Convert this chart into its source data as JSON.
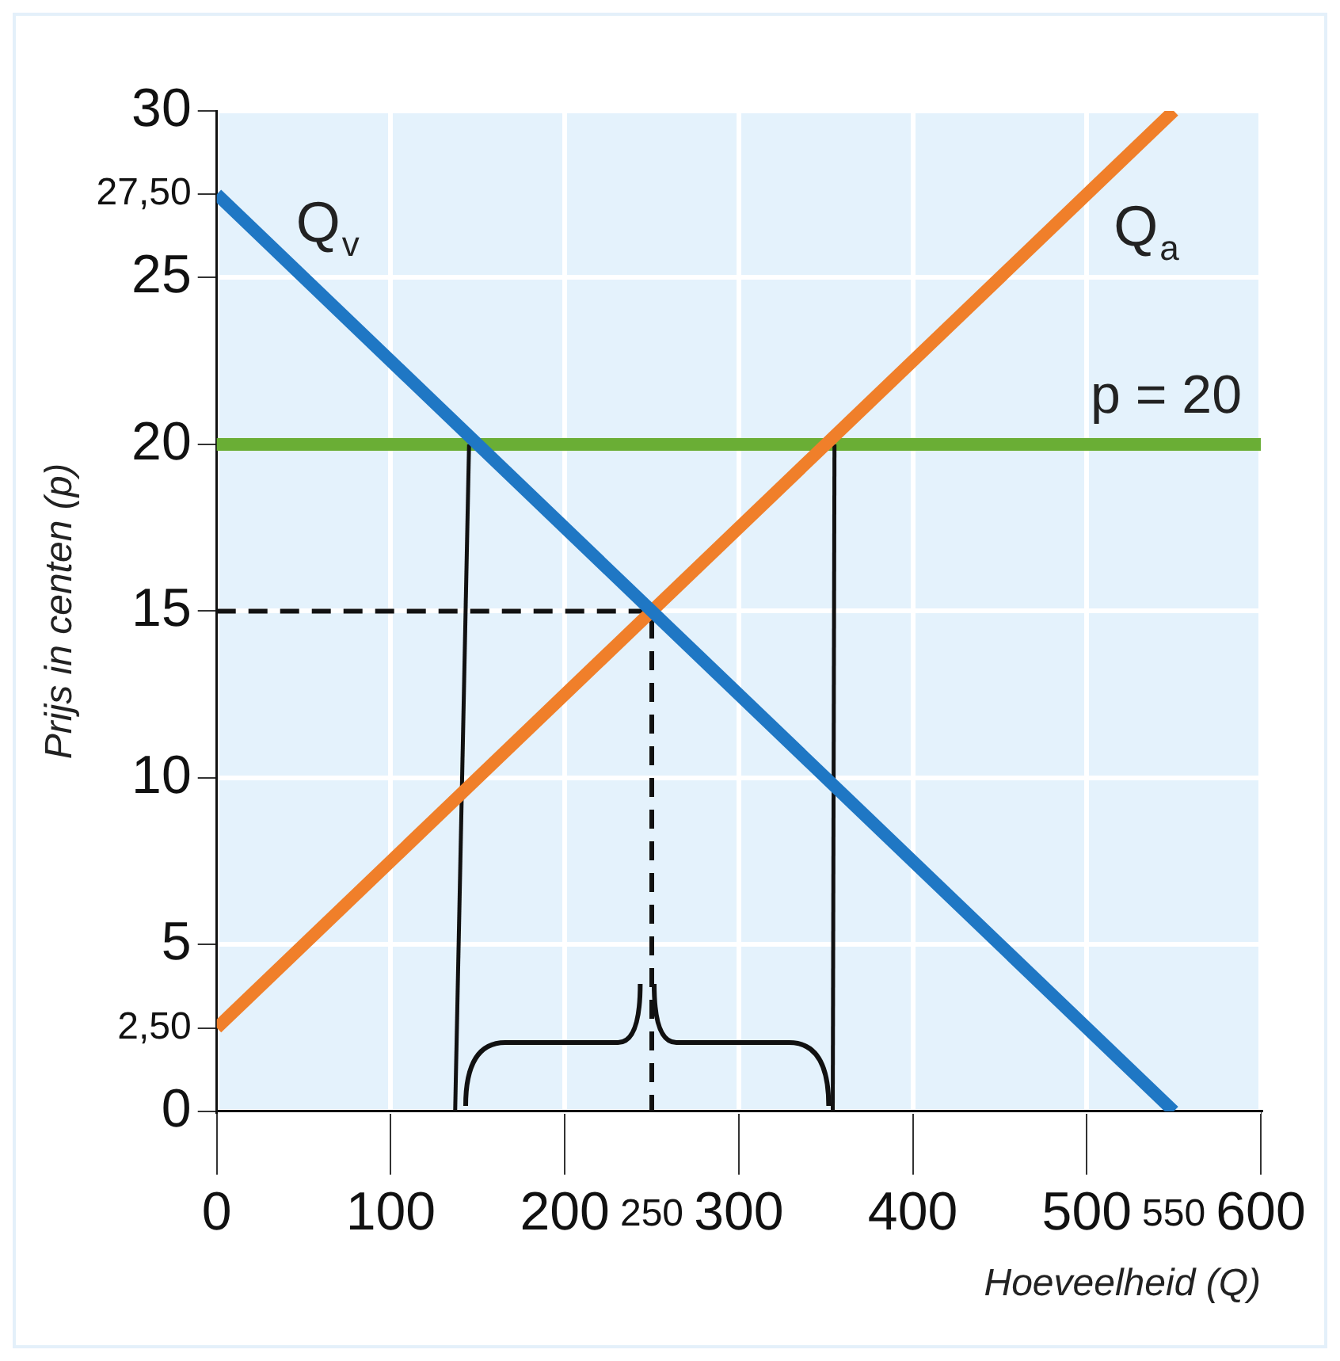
{
  "chart_data": {
    "type": "line",
    "ylabel": "Prijs in centen (p)",
    "xlabel": "Hoeveelheid (Q)",
    "xlim": [
      0,
      600
    ],
    "xticks": [
      0,
      100,
      200,
      300,
      400,
      500,
      600,
      250,
      550
    ],
    "ylim": [
      0,
      30
    ],
    "yticks": [
      0,
      5,
      10,
      15,
      20,
      25,
      30,
      {
        "value": 27.5,
        "label": "27,50"
      },
      {
        "value": 2.5,
        "label": "2,50"
      }
    ],
    "grid": true,
    "legend": false,
    "marker": "none",
    "series": [
      {
        "name": "Q$_{v}$",
        "color": "#1f77c4",
        "x": [
          0,
          550
        ],
        "values": [
          27.5,
          0
        ]
      },
      {
        "name": "Q$_{a}$",
        "color": "#f07f2a",
        "x": [
          0,
          550
        ],
        "values": [
          2.5,
          30
        ]
      },
      {
        "color": "#111111",
        "x": [
          0,
          250,
          250
        ],
        "values": [
          15,
          15,
          0
        ],
        "line_style": "dashed"
      },
      {
        "color": "#111111",
        "x": [
          137,
          145
        ],
        "values": [
          0,
          20
        ]
      },
      {
        "color": "#111111",
        "x": [
          354,
          355
        ],
        "values": [
          0,
          20
        ]
      }
    ],
    "ref_lines": [
      {
        "axis": "y",
        "value": 20,
        "label": "p = 20",
        "color": "#6aae35"
      }
    ]
  }
}
